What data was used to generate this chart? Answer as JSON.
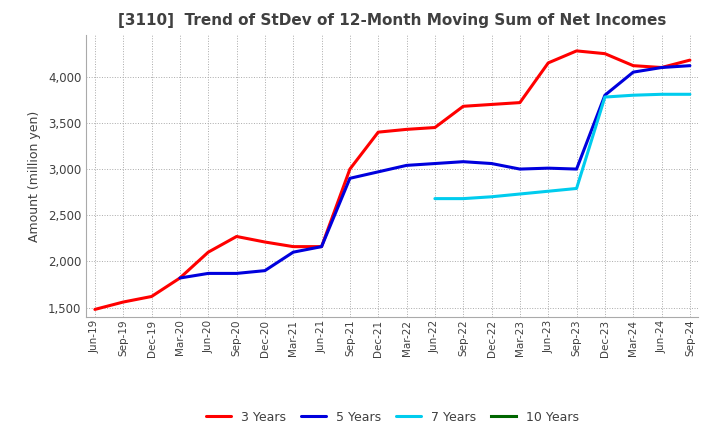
{
  "title": "[3110]  Trend of StDev of 12-Month Moving Sum of Net Incomes",
  "ylabel": "Amount (million yen)",
  "background_color": "#ffffff",
  "plot_bg_color": "#ffffff",
  "grid_color": "#aaaaaa",
  "title_color": "#404040",
  "x_labels": [
    "Jun-19",
    "Sep-19",
    "Dec-19",
    "Mar-20",
    "Jun-20",
    "Sep-20",
    "Dec-20",
    "Mar-21",
    "Jun-21",
    "Sep-21",
    "Dec-21",
    "Mar-22",
    "Jun-22",
    "Sep-22",
    "Dec-22",
    "Mar-23",
    "Jun-23",
    "Sep-23",
    "Dec-23",
    "Mar-24",
    "Jun-24",
    "Sep-24"
  ],
  "series": {
    "3 Years": {
      "color": "#ff0000",
      "data": [
        1480,
        1560,
        1620,
        1820,
        2100,
        2270,
        2210,
        2160,
        2160,
        3000,
        3400,
        3430,
        3450,
        3680,
        3700,
        3720,
        4150,
        4280,
        4250,
        4120,
        4100,
        4180
      ]
    },
    "5 Years": {
      "color": "#0000dd",
      "data": [
        null,
        null,
        null,
        1820,
        1870,
        1870,
        1900,
        2100,
        2160,
        2900,
        2970,
        3040,
        3060,
        3080,
        3060,
        3000,
        3010,
        3000,
        3800,
        4050,
        4100,
        4120
      ]
    },
    "7 Years": {
      "color": "#00ccee",
      "data": [
        null,
        null,
        null,
        null,
        null,
        null,
        null,
        null,
        null,
        null,
        null,
        null,
        2680,
        2680,
        2700,
        2730,
        2760,
        2790,
        3780,
        3800,
        3810,
        3810
      ]
    },
    "10 Years": {
      "color": "#006600",
      "data": [
        null,
        null,
        null,
        null,
        null,
        null,
        null,
        null,
        null,
        null,
        null,
        null,
        null,
        null,
        null,
        null,
        null,
        null,
        null,
        null,
        null,
        null
      ]
    }
  },
  "ylim": [
    1400,
    4450
  ],
  "yticks": [
    1500,
    2000,
    2500,
    3000,
    3500,
    4000
  ],
  "line_width": 2.2
}
